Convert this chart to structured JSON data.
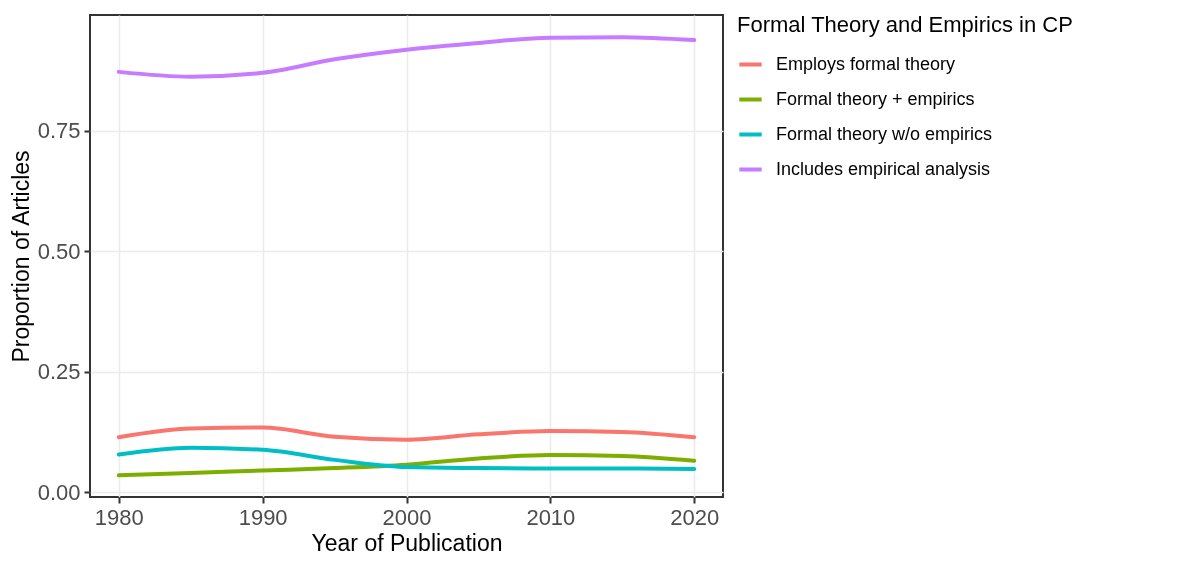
{
  "chart_data": {
    "type": "line",
    "xlabel": "Year of Publication",
    "ylabel": "Proportion of Articles",
    "legend_title": "Formal Theory and Empirics in CP",
    "legend": "right",
    "grid": true,
    "line_style": "solid",
    "marker": "none",
    "x": [
      1980,
      1985,
      1990,
      1995,
      2000,
      2005,
      2010,
      2015,
      2020
    ],
    "xlim": [
      1978,
      2022
    ],
    "xticks": [
      1980,
      1990,
      2000,
      2010,
      2020
    ],
    "ylim": [
      -0.01,
      0.99
    ],
    "yticks": [
      {
        "value": 0,
        "label": "0.00"
      },
      {
        "value": 0.25,
        "label": "0.25"
      },
      {
        "value": 0.5,
        "label": "0.50"
      },
      {
        "value": 0.75,
        "label": "0.75"
      }
    ],
    "series": [
      {
        "name": "Employs formal theory",
        "color": "#f8766d",
        "values": [
          0.114,
          0.132,
          0.134,
          0.115,
          0.109,
          0.12,
          0.127,
          0.125,
          0.114
        ]
      },
      {
        "name": "Formal theory + empirics",
        "color": "#7cae00",
        "values": [
          0.035,
          0.04,
          0.045,
          0.05,
          0.057,
          0.07,
          0.077,
          0.075,
          0.065
        ]
      },
      {
        "name": "Formal theory w/o empirics",
        "color": "#00bfc4",
        "values": [
          0.078,
          0.092,
          0.088,
          0.067,
          0.052,
          0.05,
          0.049,
          0.049,
          0.048
        ]
      },
      {
        "name": "Includes empirical analysis",
        "color": "#c77cff",
        "values": [
          0.872,
          0.862,
          0.87,
          0.898,
          0.918,
          0.932,
          0.943,
          0.944,
          0.938
        ]
      }
    ]
  }
}
